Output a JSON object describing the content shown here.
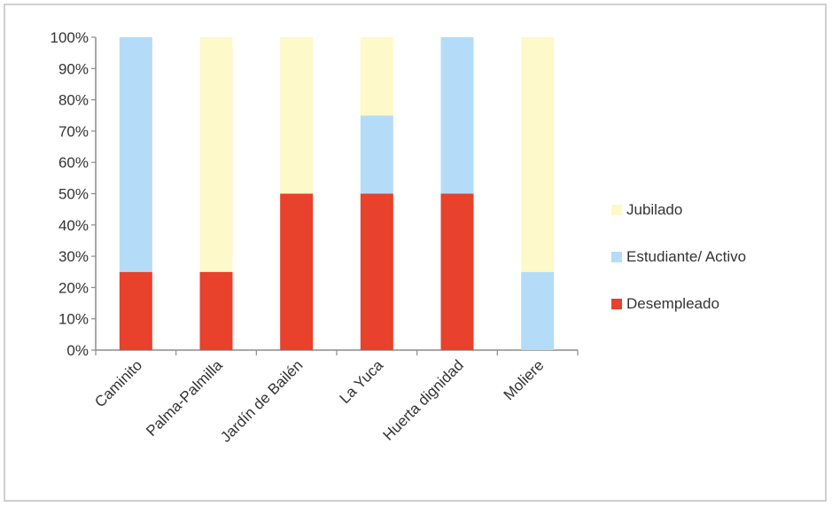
{
  "chart_data": {
    "type": "bar",
    "stacked": true,
    "percent": true,
    "categories": [
      "Caminito",
      "Palma-Palmilla",
      "Jardín de Bailén",
      "La Yuca",
      "Huerta dignidad",
      "Moliere"
    ],
    "series": [
      {
        "name": "Desempleado",
        "color": "#e8412c",
        "values": [
          25,
          25,
          50,
          50,
          50,
          0
        ]
      },
      {
        "name": "Estudiante/ Activo",
        "color": "#b4dcf8",
        "values": [
          75,
          0,
          0,
          25,
          50,
          25
        ]
      },
      {
        "name": "Jubilado",
        "color": "#fdf9c8",
        "values": [
          0,
          75,
          50,
          25,
          0,
          75
        ]
      }
    ],
    "yticks": [
      "0%",
      "10%",
      "20%",
      "30%",
      "40%",
      "50%",
      "60%",
      "70%",
      "80%",
      "90%",
      "100%"
    ],
    "ylim": [
      0,
      100
    ],
    "legend_order": [
      "Jubilado",
      "Estudiante/ Activo",
      "Desempleado"
    ],
    "legend_position": "right",
    "grid": false
  }
}
